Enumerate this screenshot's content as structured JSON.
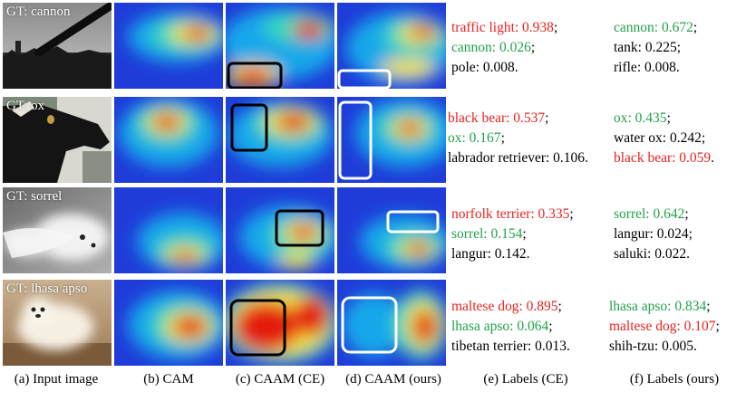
{
  "rows": [
    {
      "gt_label": "GT: cannon",
      "labels_ce": [
        {
          "text": "traffic light: 0.938",
          "sep": ";",
          "color": "red"
        },
        {
          "text": "cannon: 0.026",
          "sep": ";",
          "color": "green"
        },
        {
          "text": "pole: 0.008",
          "sep": ".",
          "color": "black"
        }
      ],
      "labels_ours": [
        {
          "text": "cannon: 0.672",
          "sep": ";",
          "color": "green"
        },
        {
          "text": "tank: 0.225",
          "sep": ";",
          "color": "black"
        },
        {
          "text": "rifle: 0.008",
          "sep": ".",
          "color": "black"
        }
      ]
    },
    {
      "gt_label": "GT: ox",
      "labels_ce": [
        {
          "text": "black bear: 0.537",
          "sep": ";",
          "color": "red"
        },
        {
          "text": "ox: 0.167",
          "sep": ";",
          "color": "green"
        },
        {
          "text": "labrador retriever: 0.106",
          "sep": ".",
          "color": "black"
        }
      ],
      "labels_ours": [
        {
          "text": "ox: 0.435",
          "sep": ";",
          "color": "green"
        },
        {
          "text": "water ox: 0.242",
          "sep": ";",
          "color": "black"
        },
        {
          "text": "black bear: 0.059",
          "sep": ".",
          "color": "red"
        }
      ]
    },
    {
      "gt_label": "GT: sorrel",
      "labels_ce": [
        {
          "text": "norfolk terrier: 0.335",
          "sep": ";",
          "color": "red"
        },
        {
          "text": "sorrel: 0.154",
          "sep": ";",
          "color": "green"
        },
        {
          "text": "langur: 0.142",
          "sep": ".",
          "color": "black"
        }
      ],
      "labels_ours": [
        {
          "text": "sorrel: 0.642",
          "sep": ";",
          "color": "green"
        },
        {
          "text": "langur: 0.024",
          "sep": ";",
          "color": "black"
        },
        {
          "text": "saluki: 0.022",
          "sep": ".",
          "color": "black"
        }
      ]
    },
    {
      "gt_label": "GT: lhasa apso",
      "labels_ce": [
        {
          "text": "maltese dog: 0.895",
          "sep": ";",
          "color": "red"
        },
        {
          "text": "lhasa apso: 0.064",
          "sep": ";",
          "color": "green"
        },
        {
          "text": "tibetan terrier: 0.013",
          "sep": ".",
          "color": "black"
        }
      ],
      "labels_ours": [
        {
          "text": "lhasa apso: 0.834",
          "sep": ";",
          "color": "green"
        },
        {
          "text": "maltese dog: 0.107",
          "sep": ";",
          "color": "red"
        },
        {
          "text": "shih-tzu: 0.005",
          "sep": ".",
          "color": "black"
        }
      ]
    }
  ],
  "captions": {
    "a": "(a) Input image",
    "b": "(b) CAM",
    "c": "(c) CAAM (CE)",
    "d": "(d) CAAM (ours)",
    "e": "(e) Labels (CE)",
    "f": "(f) Labels (ours)"
  },
  "colors": {
    "wrong_label": "#e8231f",
    "correct_label": "#22a24a",
    "other_label": "#000000",
    "ce_box": "#000000",
    "ours_box": "#ffffff",
    "heatmap_cold": "#1f3cd8",
    "heatmap_hot": "#e41f0f"
  }
}
